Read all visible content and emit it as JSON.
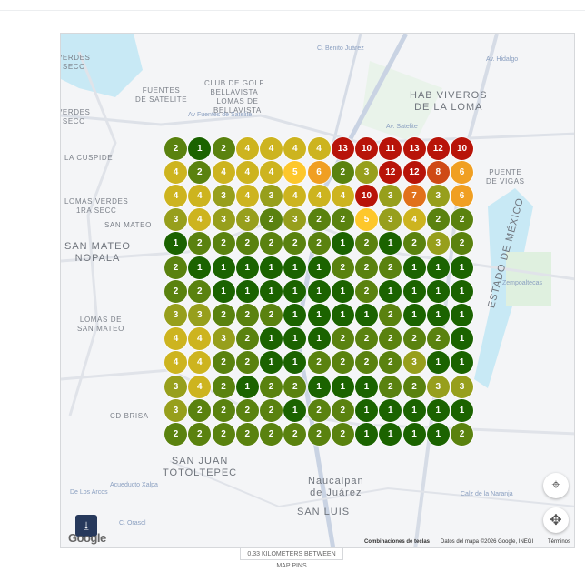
{
  "map": {
    "labels": [
      {
        "text": "VERDES\nSECC",
        "kind": "small"
      },
      {
        "text": "FUENTES\nDE SATELITE",
        "kind": "small"
      },
      {
        "text": "CLUB DE GOLF\nBELLAVISTA",
        "kind": "small"
      },
      {
        "text": "LOMAS DE\nBELLAVISTA",
        "kind": "small"
      },
      {
        "text": "HAB VIVEROS\nDE LA LOMA",
        "kind": "big"
      },
      {
        "text": "VERDES\nSECC",
        "kind": "small"
      },
      {
        "text": "LA CUSPIDE",
        "kind": "small"
      },
      {
        "text": "LOMAS VERDES\n1RA SECC",
        "kind": "small"
      },
      {
        "text": "SAN MATEO",
        "kind": "small"
      },
      {
        "text": "SAN MATEO\nNOPALA",
        "kind": "big"
      },
      {
        "text": "LOMAS DE\nSAN MATEO",
        "kind": "small"
      },
      {
        "text": "CD BRISA",
        "kind": "small"
      },
      {
        "text": "SAN JUAN\nTOTOLTEPEC",
        "kind": "big"
      },
      {
        "text": "Naucalpan\nde Juárez",
        "kind": "big"
      },
      {
        "text": "SAN LUIS",
        "kind": "big"
      },
      {
        "text": "PUENTE\nDE VIGAS",
        "kind": "small"
      },
      {
        "text": "ESTADO DE MÉXICO",
        "kind": "big"
      },
      {
        "text": "Av. Hidalgo",
        "kind": "road"
      },
      {
        "text": "C. Benito Juárez",
        "kind": "road"
      },
      {
        "text": "Av Fuentes de Satelite",
        "kind": "road"
      },
      {
        "text": "Av. Satelite",
        "kind": "road"
      },
      {
        "text": "Zempoaltecas",
        "kind": "road"
      },
      {
        "text": "Calz de la Naranja",
        "kind": "road"
      },
      {
        "text": "De Los Arcos",
        "kind": "road"
      },
      {
        "text": "Acueducto Xalpa",
        "kind": "road"
      },
      {
        "text": "C. Orasol",
        "kind": "road"
      }
    ],
    "pins": [
      [
        2,
        1,
        2,
        4,
        4,
        4,
        4,
        13,
        10,
        11,
        13,
        12,
        10
      ],
      [
        4,
        2,
        4,
        4,
        4,
        5,
        6,
        2,
        3,
        12,
        12,
        8,
        6
      ],
      [
        4,
        4,
        3,
        4,
        3,
        4,
        4,
        4,
        10,
        3,
        7,
        3,
        6
      ],
      [
        3,
        4,
        3,
        3,
        2,
        3,
        2,
        2,
        5,
        3,
        4,
        2,
        2
      ],
      [
        1,
        2,
        2,
        2,
        2,
        2,
        2,
        1,
        2,
        1,
        2,
        3,
        2
      ],
      [
        2,
        1,
        1,
        1,
        1,
        1,
        1,
        2,
        2,
        2,
        1,
        1,
        1
      ],
      [
        2,
        2,
        1,
        1,
        1,
        1,
        1,
        1,
        2,
        1,
        1,
        1,
        1
      ],
      [
        3,
        3,
        2,
        2,
        2,
        1,
        1,
        1,
        1,
        2,
        1,
        1,
        1
      ],
      [
        4,
        4,
        3,
        2,
        1,
        1,
        1,
        2,
        2,
        2,
        2,
        2,
        1
      ],
      [
        4,
        4,
        2,
        2,
        1,
        1,
        2,
        2,
        2,
        2,
        3,
        1,
        1
      ],
      [
        3,
        4,
        2,
        1,
        2,
        2,
        1,
        1,
        1,
        2,
        2,
        3,
        3
      ],
      [
        3,
        2,
        2,
        2,
        2,
        1,
        2,
        2,
        1,
        1,
        1,
        1,
        1
      ],
      [
        2,
        2,
        2,
        2,
        2,
        2,
        2,
        2,
        1,
        1,
        1,
        1,
        2
      ]
    ],
    "pin_colors": {
      "1": "#1b6300",
      "2": "#5a820f",
      "3": "#979f1c",
      "4": "#cdb41f",
      "5": "#fdc72b",
      "6": "#f09f22",
      "7": "#e1711b",
      "8": "#cf4a15",
      "10+": "#b81409"
    },
    "google_logo": "Google",
    "keyboard_shortcuts": "Combinaciones de teclas",
    "map_data": "Datos del mapa ©2026 Google, INEGI",
    "terms": "Términos",
    "icons": {
      "download": "download-icon",
      "locate": "crosshair-icon",
      "pan": "move-icon"
    }
  },
  "scale_note": "0.33 KILOMETERS BETWEEN MAP PINS"
}
